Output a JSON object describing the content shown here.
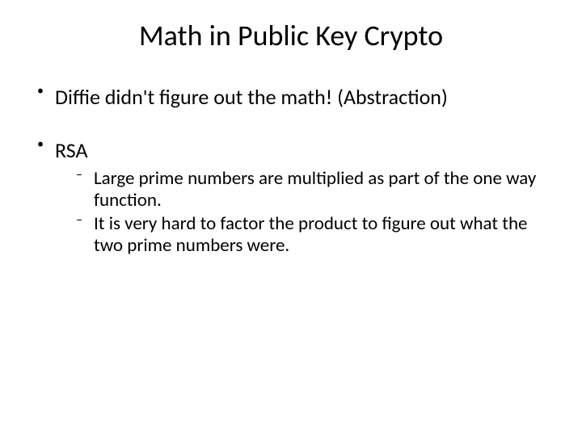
{
  "slide": {
    "title": "Math in Public Key Crypto",
    "title_fontsize": 36,
    "bullets": [
      {
        "text": "Diffie didn't figure out the math! (Abstraction)",
        "fontsize": 26,
        "sub": []
      },
      {
        "text": "RSA",
        "fontsize": 26,
        "sub": [
          {
            "text": "Large prime numbers are multiplied as part of the one way function.",
            "fontsize": 23
          },
          {
            "text": "It is very hard to factor the product to figure out what the two prime numbers were.",
            "fontsize": 23
          }
        ]
      }
    ],
    "colors": {
      "background": "#ffffff",
      "text": "#000000"
    }
  }
}
